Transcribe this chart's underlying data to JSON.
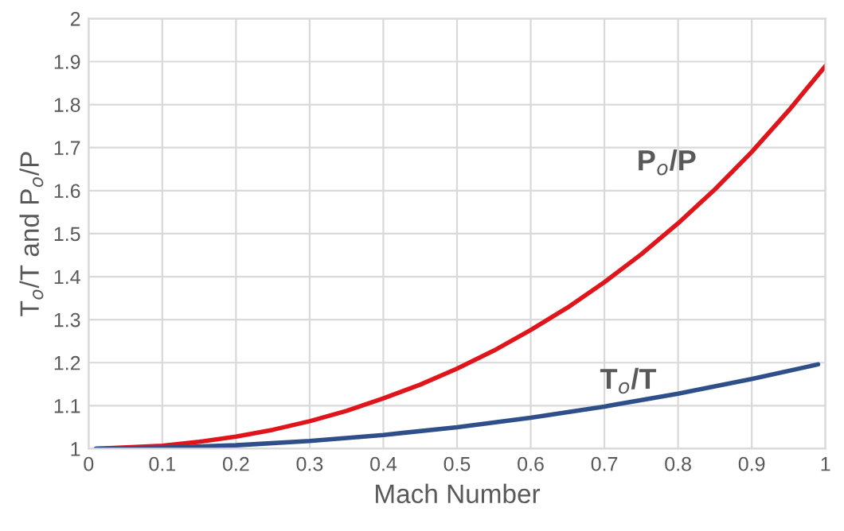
{
  "chart_data": {
    "type": "line",
    "xlabel": "Mach Number",
    "ylabel": "T$_{o}$/T and P$_{o}$/P",
    "series": [
      {
        "name": "P$_{o}$/P",
        "color": "#e0151b",
        "x": [
          0.01,
          0.1,
          0.15,
          0.2,
          0.25,
          0.3,
          0.35,
          0.4,
          0.45,
          0.5,
          0.55,
          0.6,
          0.65,
          0.7,
          0.75,
          0.8,
          0.85,
          0.9,
          0.95,
          1.0
        ],
        "values": [
          1.0,
          1.007,
          1.016,
          1.028,
          1.044,
          1.064,
          1.088,
          1.117,
          1.149,
          1.186,
          1.228,
          1.276,
          1.328,
          1.387,
          1.452,
          1.524,
          1.603,
          1.69,
          1.786,
          1.89
        ]
      },
      {
        "name": "T$_{o}$/T",
        "color": "#2f4f8a",
        "x": [
          0.01,
          0.1,
          0.2,
          0.3,
          0.4,
          0.5,
          0.6,
          0.7,
          0.8,
          0.9,
          0.99
        ],
        "values": [
          1.0,
          1.002,
          1.008,
          1.018,
          1.032,
          1.05,
          1.072,
          1.098,
          1.128,
          1.162,
          1.196
        ]
      }
    ],
    "xlim": [
      0,
      1
    ],
    "xticks": [
      0,
      0.1,
      0.2,
      0.3,
      0.4,
      0.5,
      0.6,
      0.7,
      0.8,
      0.9,
      1
    ],
    "ylim": [
      1,
      2
    ],
    "yticks": [
      1,
      1.1,
      1.2,
      1.3,
      1.4,
      1.5,
      1.6,
      1.7,
      1.8,
      1.9,
      2
    ],
    "grid": true,
    "legend": false,
    "marker": "none",
    "line_style": "solid"
  }
}
